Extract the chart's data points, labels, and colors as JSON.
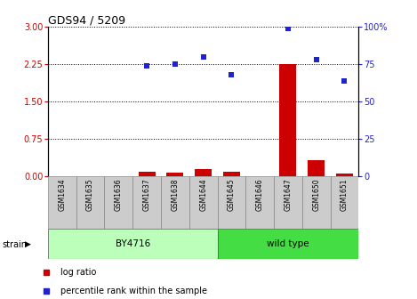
{
  "title": "GDS94 / 5209",
  "samples": [
    "GSM1634",
    "GSM1635",
    "GSM1636",
    "GSM1637",
    "GSM1638",
    "GSM1644",
    "GSM1645",
    "GSM1646",
    "GSM1647",
    "GSM1650",
    "GSM1651"
  ],
  "log_ratio": [
    0.0,
    0.0,
    0.0,
    0.09,
    0.08,
    0.14,
    0.1,
    0.0,
    2.25,
    0.32,
    0.06
  ],
  "percentile_rank": [
    null,
    null,
    null,
    74,
    75,
    80,
    68,
    null,
    99,
    78,
    64
  ],
  "bar_color": "#cc0000",
  "dot_color": "#2222cc",
  "by4716_count": 6,
  "wild_type_count": 5,
  "strain_label_by4716": "BY4716",
  "strain_label_wild": "wild type",
  "strain_label": "strain",
  "yticks_left": [
    0,
    0.75,
    1.5,
    2.25,
    3.0
  ],
  "yticks_right_vals": [
    0,
    25,
    50,
    75,
    100
  ],
  "yticks_right_labels": [
    "0",
    "25",
    "50",
    "75",
    "100%"
  ],
  "ylim_left": [
    0,
    3.0
  ],
  "ylim_right": [
    0,
    100
  ],
  "ylabel_left_color": "#cc0000",
  "ylabel_right_color": "#2222cc",
  "legend_log": "log ratio",
  "legend_pct": "percentile rank within the sample",
  "strain_bg_color_by4716": "#bbffbb",
  "strain_bg_color_wild": "#44dd44",
  "tick_bg_color": "#cccccc",
  "title_fontsize": 9,
  "tick_fontsize": 7,
  "label_fontsize": 5.5,
  "strain_fontsize": 7.5,
  "legend_fontsize": 7
}
